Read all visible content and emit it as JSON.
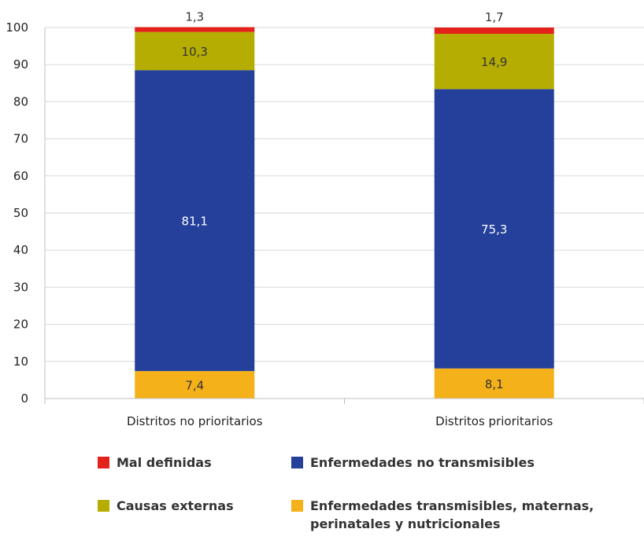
{
  "chart_data": {
    "type": "bar",
    "stacked": true,
    "categories": [
      "Distritos no prioritarios",
      "Distritos prioritarios"
    ],
    "series": [
      {
        "name": "Enfermedades transmisibles, maternas, perinatales y nutricionales",
        "color": "#f5b119",
        "values": [
          7.4,
          8.1
        ],
        "labels": [
          "7,4",
          "8,1"
        ]
      },
      {
        "name": "Enfermedades no transmisibles",
        "color": "#24409a",
        "values": [
          81.1,
          75.3
        ],
        "labels": [
          "81,1",
          "75,3"
        ]
      },
      {
        "name": "Causas externas",
        "color": "#b5ad02",
        "values": [
          10.3,
          14.9
        ],
        "labels": [
          "10,3",
          "14,9"
        ]
      },
      {
        "name": "Mal definidas",
        "color": "#e3231b",
        "values": [
          1.3,
          1.7
        ],
        "labels": [
          "1,3",
          "1,7"
        ]
      }
    ],
    "ylim": [
      0,
      100
    ],
    "yticks": [
      "0",
      "10",
      "20",
      "30",
      "40",
      "50",
      "60",
      "70",
      "80",
      "90",
      "100"
    ],
    "grid": true,
    "legend_position": "bottom"
  },
  "legend": {
    "mal_definidas": "Mal definidas",
    "no_transmisibles": "Enfermedades no transmisibles",
    "causas_externas": "Causas externas",
    "transmisibles": "Enfermedades transmisibles, maternas, perinatales y nutricionales"
  }
}
